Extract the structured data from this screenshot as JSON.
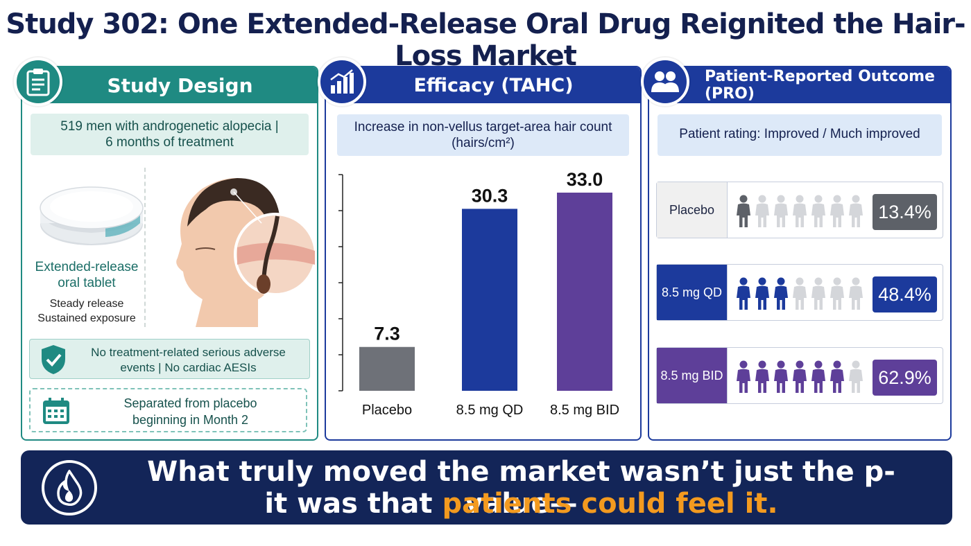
{
  "title": "Study 302: One Extended-Release Oral Drug Reignited the Hair-Loss Market",
  "design": {
    "heading": "Study Design",
    "population_line1": "519 men with androgenetic alopecia |",
    "population_line2": "6 months of treatment",
    "tablet_label_line1": "Extended-release",
    "tablet_label_line2": "oral tablet",
    "tablet_sub_line1": "Steady release",
    "tablet_sub_line2": "Sustained exposure",
    "safety_line1": "No treatment-related serious adverse",
    "safety_line2": "events  |  No cardiac AESIs",
    "separation_line1": "Separated from placebo",
    "separation_line2": "beginning in Month 2",
    "accent_color": "#1f8a82"
  },
  "efficacy": {
    "heading": "Efficacy (TAHC)",
    "subtitle_line1": "Increase in non-vellus target-area hair count",
    "subtitle_line2": "(hairs/cm²)"
  },
  "chart_data": {
    "type": "bar",
    "title": "Increase in non-vellus target-area hair count (hairs/cm²)",
    "categories": [
      "Placebo",
      "8.5 mg QD",
      "8.5 mg BID"
    ],
    "values": [
      7.3,
      30.3,
      33.0
    ],
    "value_labels": [
      "7.3",
      "30.3",
      "33.0"
    ],
    "colors": [
      "#6e7178",
      "#1c3a9c",
      "#5e3f99"
    ],
    "ylim": [
      0,
      36
    ],
    "grid": false,
    "xlabel": "",
    "ylabel": ""
  },
  "pro": {
    "heading": "Patient-Reported Outcome (PRO)",
    "subtitle": "Patient rating: Improved / Much improved",
    "rows": [
      {
        "label": "Placebo",
        "value": "13.4%",
        "filled": 1,
        "total": 7,
        "color": "#5d6168",
        "label_bg": "#f0f0f0",
        "label_color": "#1b2340"
      },
      {
        "label": "8.5 mg QD",
        "value": "48.4%",
        "filled": 3,
        "total": 7,
        "color": "#1c3a9c",
        "label_bg": "#1c3a9c",
        "label_color": "#ffffff"
      },
      {
        "label": "8.5 mg BID",
        "value": "62.9%",
        "filled": 6,
        "total": 7,
        "color": "#5e3f99",
        "label_bg": "#5e3f99",
        "label_color": "#ffffff"
      }
    ]
  },
  "banner": {
    "line1": "What truly moved the market wasn’t just the p-value—",
    "line2_prefix": "it was that ",
    "line2_highlight": "patients could feel it",
    "line2_suffix": ".",
    "highlight_color": "#f39a1f"
  }
}
